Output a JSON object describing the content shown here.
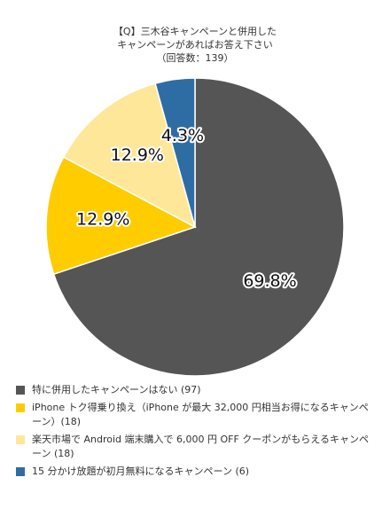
{
  "chart_data": {
    "type": "pie",
    "title_lines": [
      "【Q】三木谷キャンペーンと併用した",
      "キャンペーンがあればお答え下さい",
      "（回答数：139）"
    ],
    "slices": [
      {
        "label": "特に併用したキャンペーンはない (97)",
        "value": 69.8,
        "value_label": "69.8%",
        "color": "#555555"
      },
      {
        "label": "iPhone トク得乗り換え（iPhone が最大 32,000 円相当お得になるキャンペーン）(18)",
        "value": 12.9,
        "value_label": "12.9%",
        "color": "#FFCC00"
      },
      {
        "label": "楽天市場で Android 端末購入で 6,000 円 OFF クーポンがもらえるキャンペーン (18)",
        "value": 12.9,
        "value_label": "12.9%",
        "color": "#FFE799"
      },
      {
        "label": "15 分かけ放題が初月無料になるキャンペーン (6)",
        "value": 4.3,
        "value_label": "4.3%",
        "color": "#2E6DA4"
      }
    ],
    "start": "12 o'clock",
    "direction": "clockwise",
    "legend_position": "bottom"
  }
}
